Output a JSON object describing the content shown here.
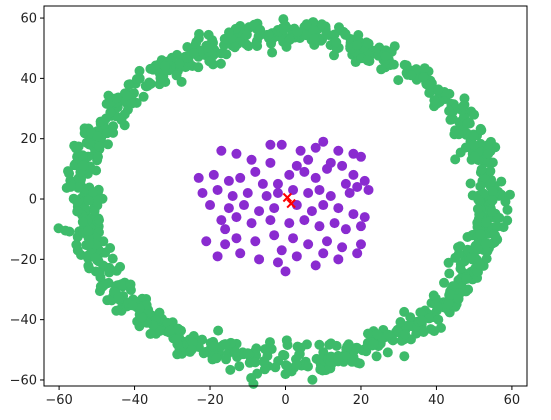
{
  "chart_data": {
    "type": "scatter",
    "title": "",
    "xlabel": "",
    "ylabel": "",
    "xlim": [
      -64,
      64
    ],
    "ylim": [
      -62,
      64
    ],
    "xticks": [
      -60,
      -40,
      -20,
      0,
      20,
      40,
      60
    ],
    "yticks": [
      -60,
      -40,
      -20,
      0,
      20,
      40,
      60
    ],
    "grid": false,
    "legend": "none",
    "series": [
      {
        "shape": "ring",
        "color": "#3dbb6a",
        "marker": "circle",
        "center": [
          0,
          0
        ],
        "radius_x": 54,
        "radius_y": 54,
        "approx_point_count": 1000
      },
      {
        "shape": "cluster",
        "color": "#8a2bd0",
        "marker": "circle",
        "points": [
          [
            -17,
            16
          ],
          [
            -13,
            15
          ],
          [
            -9,
            13
          ],
          [
            -4,
            18
          ],
          [
            -1,
            18
          ],
          [
            4,
            16
          ],
          [
            8,
            17
          ],
          [
            10,
            19
          ],
          [
            14,
            16
          ],
          [
            18,
            15
          ],
          [
            20,
            14
          ],
          [
            -23,
            7
          ],
          [
            -19,
            8
          ],
          [
            -15,
            6
          ],
          [
            -12,
            7
          ],
          [
            -6,
            5
          ],
          [
            -2,
            5
          ],
          [
            1,
            8
          ],
          [
            5,
            9
          ],
          [
            8,
            7
          ],
          [
            11,
            10
          ],
          [
            15,
            11
          ],
          [
            18,
            8
          ],
          [
            21,
            6
          ],
          [
            -22,
            2
          ],
          [
            -18,
            3
          ],
          [
            -14,
            1
          ],
          [
            -10,
            2
          ],
          [
            -5,
            1
          ],
          [
            -2,
            2
          ],
          [
            2,
            3
          ],
          [
            6,
            2
          ],
          [
            9,
            3
          ],
          [
            12,
            1
          ],
          [
            17,
            2
          ],
          [
            19,
            4
          ],
          [
            22,
            3
          ],
          [
            -20,
            -2
          ],
          [
            -15,
            -3
          ],
          [
            -11,
            -2
          ],
          [
            -7,
            -4
          ],
          [
            -3,
            -3
          ],
          [
            3,
            -2
          ],
          [
            7,
            -4
          ],
          [
            10,
            -2
          ],
          [
            14,
            -3
          ],
          [
            18,
            -5
          ],
          [
            21,
            -6
          ],
          [
            -17,
            -7
          ],
          [
            -13,
            -6
          ],
          [
            -9,
            -8
          ],
          [
            -4,
            -7
          ],
          [
            1,
            -8
          ],
          [
            5,
            -7
          ],
          [
            9,
            -9
          ],
          [
            13,
            -8
          ],
          [
            16,
            -10
          ],
          [
            20,
            -9
          ],
          [
            -21,
            -14
          ],
          [
            -16,
            -15
          ],
          [
            -13,
            -13
          ],
          [
            -8,
            -14
          ],
          [
            -3,
            -12
          ],
          [
            2,
            -13
          ],
          [
            6,
            -15
          ],
          [
            11,
            -14
          ],
          [
            15,
            -16
          ],
          [
            20,
            -15
          ],
          [
            -18,
            -19
          ],
          [
            -12,
            -18
          ],
          [
            -7,
            -20
          ],
          [
            -2,
            -21
          ],
          [
            3,
            -19
          ],
          [
            8,
            -22
          ],
          [
            14,
            -20
          ],
          [
            19,
            -18
          ],
          [
            -4,
            12
          ],
          [
            6,
            13
          ],
          [
            12,
            12
          ],
          [
            -8,
            9
          ],
          [
            3,
            11
          ],
          [
            16,
            5
          ],
          [
            -16,
            -10
          ],
          [
            0,
            -24
          ],
          [
            10,
            -18
          ],
          [
            -1,
            -17
          ]
        ]
      },
      {
        "shape": "centroids",
        "color": "#ff0000",
        "marker": "x",
        "points": [
          [
            0.5,
            0.5
          ],
          [
            1.5,
            -1.5
          ]
        ]
      }
    ]
  }
}
